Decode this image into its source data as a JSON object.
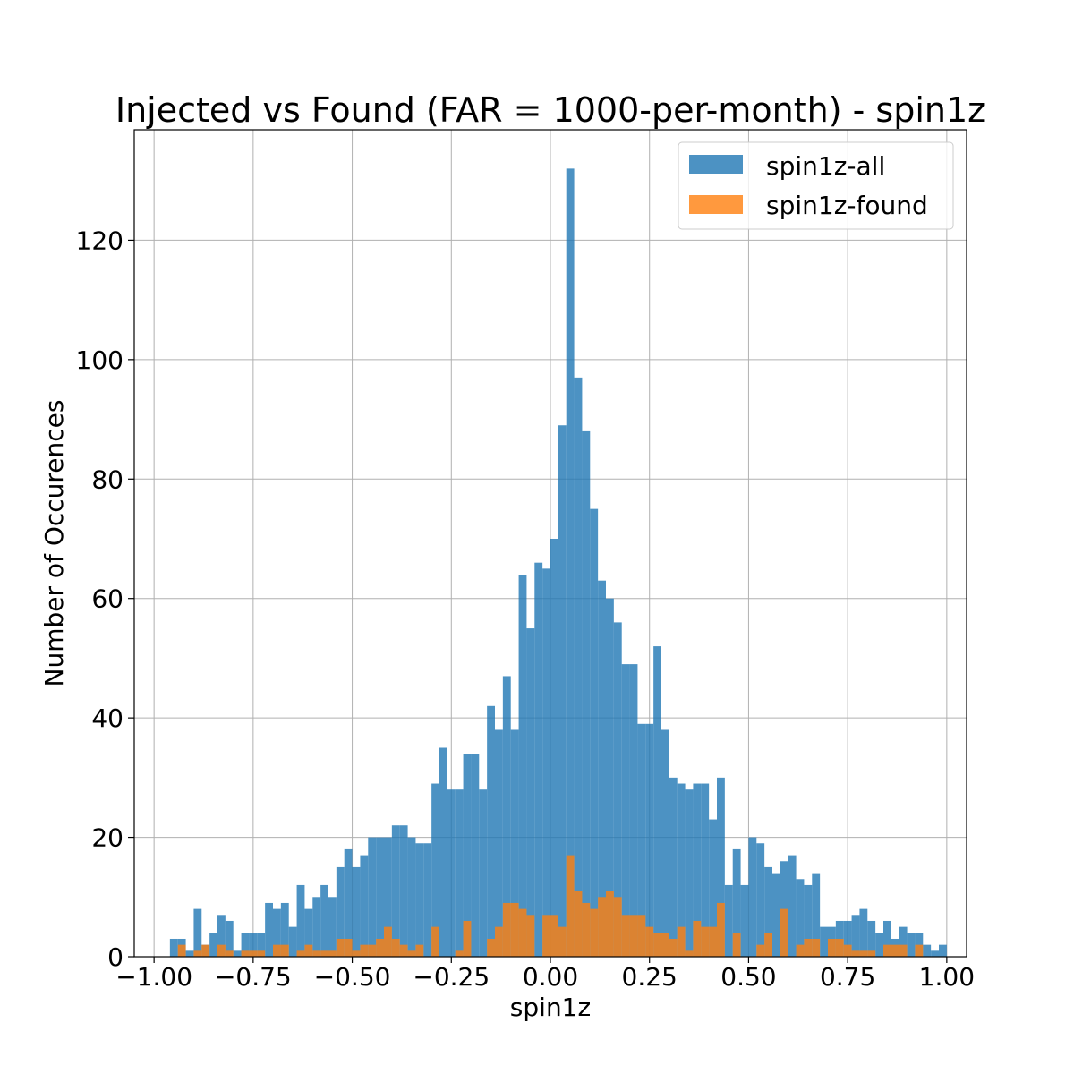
{
  "chart_data": {
    "type": "bar",
    "title": "Injected vs Found (FAR = 1000-per-month) - spin1z",
    "xlabel": "spin1z",
    "ylabel": "Number of Occurences",
    "xlim": [
      -1.05,
      1.05
    ],
    "ylim": [
      0,
      138.5
    ],
    "bin_width": 0.02,
    "bin_start": -0.96,
    "xticks": [
      -1.0,
      -0.75,
      -0.5,
      -0.25,
      0.0,
      0.25,
      0.5,
      0.75,
      1.0
    ],
    "xtick_labels": [
      "−1.00",
      "−0.75",
      "−0.50",
      "−0.25",
      "0.00",
      "0.25",
      "0.50",
      "0.75",
      "1.00"
    ],
    "yticks": [
      0,
      20,
      40,
      60,
      80,
      100,
      120
    ],
    "ytick_labels": [
      "0",
      "20",
      "40",
      "60",
      "80",
      "100",
      "120"
    ],
    "grid": true,
    "legend_position": "top-right",
    "series": [
      {
        "name": "spin1z-all",
        "color": "#1f77b4",
        "values": [
          3,
          3,
          1,
          8,
          2,
          4,
          7,
          6,
          1,
          4,
          4,
          4,
          9,
          8,
          9,
          5,
          12,
          8,
          10,
          12,
          10,
          15,
          18,
          15,
          17,
          20,
          20,
          20,
          22,
          22,
          20,
          19,
          19,
          29,
          35,
          28,
          28,
          34,
          34,
          28,
          42,
          38,
          47,
          38,
          64,
          55,
          66,
          65,
          70,
          89,
          132,
          97,
          88,
          75,
          63,
          60,
          56,
          49,
          49,
          39,
          39,
          52,
          38,
          30,
          29,
          28,
          29,
          29,
          23,
          30,
          12,
          18,
          12,
          20,
          19,
          15,
          14,
          16,
          17,
          13,
          12,
          14,
          5,
          5,
          6,
          6,
          7,
          8,
          6,
          4,
          6,
          3,
          5,
          4,
          4,
          2,
          1,
          2
        ]
      },
      {
        "name": "spin1z-found",
        "color": "#ff7f0e",
        "values": [
          0,
          2,
          0,
          1,
          2,
          0,
          2,
          1,
          0,
          1,
          1,
          1,
          0,
          2,
          2,
          0,
          1,
          2,
          1,
          1,
          1,
          3,
          3,
          1,
          2,
          2,
          3,
          5,
          3,
          2,
          1,
          2,
          0,
          5,
          0,
          0,
          1,
          6,
          0,
          0,
          3,
          5,
          9,
          9,
          8,
          7,
          0,
          7,
          7,
          5,
          17,
          11,
          9,
          8,
          10,
          11,
          10,
          7,
          7,
          7,
          5,
          4,
          4,
          3,
          5,
          1,
          6,
          5,
          5,
          9,
          0,
          4,
          0,
          0,
          2,
          4,
          0,
          8,
          0,
          2,
          3,
          3,
          0,
          3,
          3,
          2,
          1,
          1,
          1,
          0,
          2,
          2,
          2,
          0,
          2,
          0,
          0,
          0
        ]
      }
    ]
  }
}
